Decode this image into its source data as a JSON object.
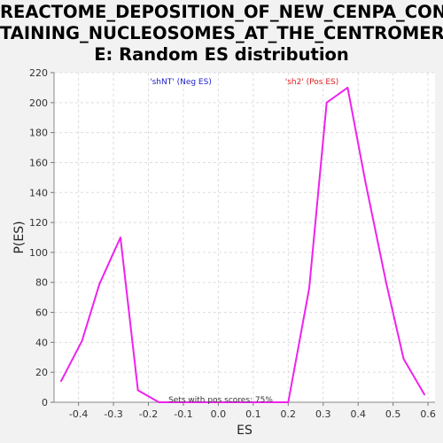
{
  "chart_data": {
    "type": "line",
    "title_lines": [
      "REACTOME_DEPOSITION_OF_NEW_CENPA_CON",
      "TAINING_NUCLEOSOMES_AT_THE_CENTROMER",
      "E: Random ES distribution"
    ],
    "xlabel": "ES",
    "ylabel": "P(ES)",
    "xlim": [
      -0.47,
      0.62
    ],
    "ylim": [
      0,
      220
    ],
    "x_ticks": [
      "-0.4",
      "-0.3",
      "-0.2",
      "-0.1",
      "0.0",
      "0.1",
      "0.2",
      "0.3",
      "0.4",
      "0.5",
      "0.6"
    ],
    "y_ticks": [
      "0",
      "20",
      "40",
      "60",
      "80",
      "100",
      "120",
      "140",
      "160",
      "180",
      "200",
      "220"
    ],
    "grid": true,
    "series": [
      {
        "color": "#ee22ee",
        "x": [
          -0.45,
          -0.39,
          -0.34,
          -0.28,
          -0.23,
          -0.17,
          -0.12,
          -0.07,
          -0.01,
          0.04,
          0.09,
          0.15,
          0.2,
          0.26,
          0.31,
          0.37,
          0.42,
          0.48,
          0.53,
          0.59
        ],
        "y": [
          14,
          41,
          79,
          110,
          8,
          0,
          0,
          0,
          0,
          0,
          0,
          0,
          0,
          76,
          200,
          210,
          148,
          80,
          29,
          5
        ]
      }
    ],
    "annotations": {
      "neg": {
        "text": "'shNT' (Neg ES)",
        "color": "#2222cc"
      },
      "pos": {
        "text": "'sh2' (Pos ES)",
        "color": "#dd2222"
      },
      "footer": {
        "text": "Sets with pos scores: 75%",
        "color": "#333333"
      }
    }
  }
}
